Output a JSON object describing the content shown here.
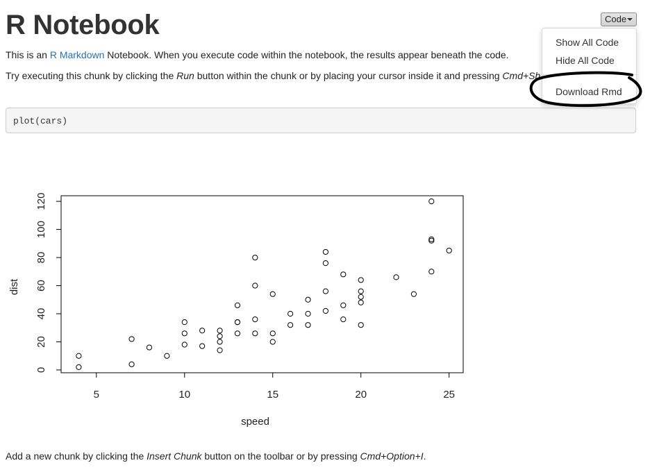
{
  "page": {
    "title": "R Notebook",
    "intro": {
      "before_link": "This is an ",
      "link_text": "R Markdown",
      "after_link": " Notebook. When you execute code within the notebook, the results appear beneath the code."
    },
    "instructions": {
      "part1": "Try executing this chunk by clicking the ",
      "run_word": "Run",
      "part2": " button within the chunk or by placing your cursor inside it and pressing ",
      "shortcut": "Cmd+Shift+Enter",
      "part3": "."
    },
    "footer": {
      "part1": "Add a new chunk by clicking the ",
      "insert_word": "Insert Chunk",
      "part2": " button on the toolbar or by pressing ",
      "shortcut": "Cmd+Option+I",
      "part3": "."
    }
  },
  "code_chunk": {
    "code": "plot(cars)"
  },
  "code_menu": {
    "button_label": "Code",
    "items": [
      "Show All Code",
      "Hide All Code",
      "Download Rmd"
    ]
  },
  "chart_data": {
    "type": "scatter",
    "xlabel": "speed",
    "ylabel": "dist",
    "xlim": [
      3,
      25.8
    ],
    "ylim": [
      -2,
      124
    ],
    "xticks": [
      5,
      10,
      15,
      20,
      25
    ],
    "yticks": [
      0,
      20,
      40,
      60,
      80,
      100,
      120
    ],
    "grid": false,
    "legend": "none",
    "x": [
      4,
      4,
      7,
      7,
      8,
      9,
      10,
      10,
      10,
      11,
      11,
      12,
      12,
      12,
      12,
      13,
      13,
      13,
      13,
      14,
      14,
      14,
      14,
      15,
      15,
      15,
      16,
      16,
      17,
      17,
      17,
      18,
      18,
      18,
      18,
      19,
      19,
      19,
      20,
      20,
      20,
      20,
      20,
      22,
      23,
      24,
      24,
      24,
      24,
      25
    ],
    "y": [
      2,
      10,
      4,
      22,
      16,
      10,
      18,
      26,
      34,
      17,
      28,
      14,
      20,
      24,
      28,
      26,
      34,
      34,
      46,
      26,
      36,
      60,
      80,
      20,
      26,
      54,
      32,
      40,
      32,
      40,
      50,
      42,
      56,
      76,
      84,
      36,
      46,
      68,
      32,
      48,
      52,
      56,
      64,
      66,
      54,
      70,
      92,
      93,
      120,
      85
    ]
  }
}
